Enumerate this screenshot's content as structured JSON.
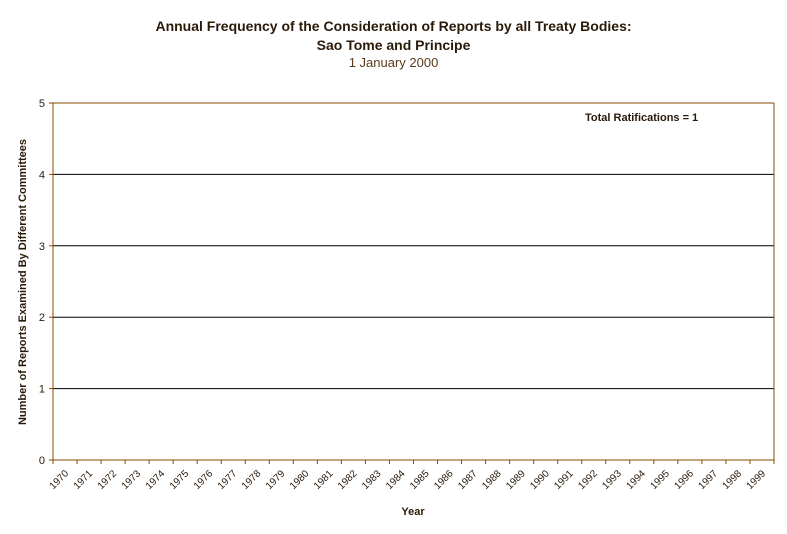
{
  "chart_data": {
    "type": "bar",
    "title": "Annual Frequency of the Consideration of Reports by all Treaty Bodies:",
    "subtitle": "Sao Tome and Principe",
    "date": "1 January 2000",
    "xlabel": "Year",
    "ylabel": "Number of Reports Examined By Different Committees",
    "ylim": [
      0,
      5
    ],
    "yticks": [
      "0",
      "1",
      "2",
      "3",
      "4",
      "5"
    ],
    "categories": [
      "1970",
      "1971",
      "1972",
      "1973",
      "1974",
      "1975",
      "1976",
      "1977",
      "1978",
      "1979",
      "1980",
      "1981",
      "1982",
      "1983",
      "1984",
      "1985",
      "1986",
      "1987",
      "1988",
      "1989",
      "1990",
      "1991",
      "1992",
      "1993",
      "1994",
      "1995",
      "1996",
      "1997",
      "1998",
      "1999"
    ],
    "values": [
      0,
      0,
      0,
      0,
      0,
      0,
      0,
      0,
      0,
      0,
      0,
      0,
      0,
      0,
      0,
      0,
      0,
      0,
      0,
      0,
      0,
      0,
      0,
      0,
      0,
      0,
      0,
      0,
      0,
      0
    ],
    "annotation": "Total Ratifications = 1",
    "grid": true,
    "colors": {
      "axis": "#8b4a00",
      "grid": "#000000",
      "text": "#2a1a0a"
    }
  }
}
